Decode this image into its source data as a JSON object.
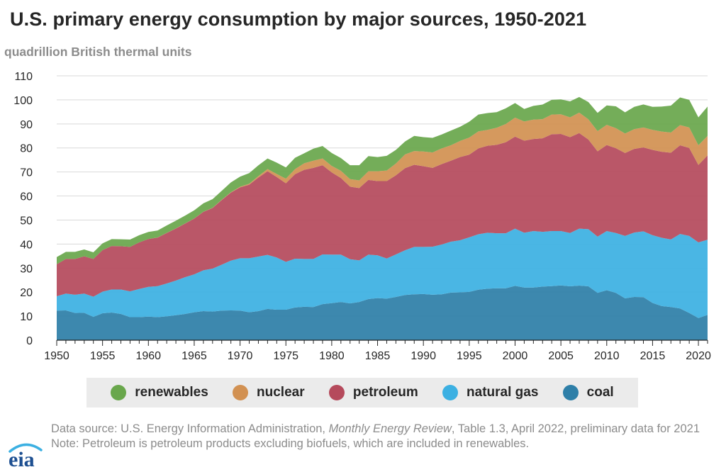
{
  "title": "U.S. primary energy consumption by major sources, 1950-2021",
  "subtitle": "quadrillion British thermal units",
  "footer": {
    "source_prefix": "Data source: U.S. Energy Information Administration, ",
    "source_italic": "Monthly Energy Review",
    "source_suffix": ", Table 1.3, April 2022, preliminary data for 2021",
    "note": "Note: Petroleum is petroleum products excluding biofuels, which are included in renewables."
  },
  "logo": {
    "text": "eia"
  },
  "colors": {
    "coal": "#2e7fa8",
    "natural_gas": "#3cb0e2",
    "petroleum": "#b54a5c",
    "nuclear": "#d29152",
    "renewables": "#69a74c"
  },
  "chart_data": {
    "type": "area",
    "stacked": true,
    "x": [
      1950,
      1951,
      1952,
      1953,
      1954,
      1955,
      1956,
      1957,
      1958,
      1959,
      1960,
      1961,
      1962,
      1963,
      1964,
      1965,
      1966,
      1967,
      1968,
      1969,
      1970,
      1971,
      1972,
      1973,
      1974,
      1975,
      1976,
      1977,
      1978,
      1979,
      1980,
      1981,
      1982,
      1983,
      1984,
      1985,
      1986,
      1987,
      1988,
      1989,
      1990,
      1991,
      1992,
      1993,
      1994,
      1995,
      1996,
      1997,
      1998,
      1999,
      2000,
      2001,
      2002,
      2003,
      2004,
      2005,
      2006,
      2007,
      2008,
      2009,
      2010,
      2011,
      2012,
      2013,
      2014,
      2015,
      2016,
      2017,
      2018,
      2019,
      2020,
      2021
    ],
    "xlim": [
      1950,
      2021
    ],
    "ylim": [
      0,
      110
    ],
    "x_ticks": [
      1950,
      1955,
      1960,
      1965,
      1970,
      1975,
      1980,
      1985,
      1990,
      1995,
      2000,
      2005,
      2010,
      2015,
      2020
    ],
    "y_ticks": [
      0,
      10,
      20,
      30,
      40,
      50,
      60,
      70,
      80,
      90,
      100,
      110
    ],
    "grid": "horizontal",
    "legend_position": "bottom",
    "series": [
      {
        "name": "coal",
        "color_key": "coal",
        "values": [
          12.3,
          12.4,
          11.3,
          11.4,
          9.7,
          11.2,
          11.5,
          10.9,
          9.6,
          9.6,
          9.8,
          9.6,
          9.9,
          10.4,
          10.9,
          11.6,
          12.1,
          11.9,
          12.3,
          12.4,
          12.3,
          11.6,
          12.1,
          13.0,
          12.7,
          12.7,
          13.6,
          13.9,
          13.8,
          15.0,
          15.4,
          15.9,
          15.3,
          15.9,
          17.1,
          17.5,
          17.3,
          18.0,
          18.8,
          19.1,
          19.2,
          18.9,
          19.1,
          19.8,
          19.9,
          20.1,
          21.0,
          21.4,
          21.6,
          21.6,
          22.6,
          21.9,
          21.9,
          22.3,
          22.5,
          22.8,
          22.4,
          22.7,
          22.4,
          19.7,
          20.8,
          19.7,
          17.4,
          18.0,
          17.9,
          15.5,
          14.2,
          13.8,
          13.2,
          11.3,
          9.2,
          10.5
        ]
      },
      {
        "name": "natural gas",
        "color_key": "natural_gas",
        "values": [
          6.0,
          7.0,
          7.6,
          8.0,
          8.4,
          9.0,
          9.6,
          10.2,
          10.7,
          11.7,
          12.4,
          12.9,
          13.7,
          14.4,
          15.3,
          15.8,
          17.0,
          17.9,
          19.1,
          20.7,
          21.8,
          22.5,
          22.7,
          22.5,
          21.7,
          19.9,
          20.3,
          19.9,
          20.0,
          20.7,
          20.2,
          19.7,
          18.4,
          17.3,
          18.5,
          17.8,
          16.7,
          17.7,
          18.6,
          19.7,
          19.6,
          20.0,
          20.7,
          21.2,
          21.7,
          22.7,
          23.1,
          23.3,
          22.9,
          22.9,
          23.8,
          22.8,
          23.5,
          22.8,
          22.9,
          22.6,
          22.2,
          23.7,
          23.8,
          23.4,
          24.6,
          24.9,
          26.0,
          26.8,
          27.4,
          28.2,
          28.4,
          28.1,
          31.0,
          32.1,
          31.5,
          31.3
        ]
      },
      {
        "name": "petroleum",
        "color_key": "petroleum",
        "values": [
          13.3,
          14.4,
          14.9,
          15.5,
          15.7,
          17.3,
          18.1,
          18.0,
          18.5,
          19.4,
          19.9,
          20.2,
          21.0,
          21.7,
          22.3,
          23.2,
          24.3,
          25.2,
          26.9,
          28.3,
          29.5,
          30.6,
          32.9,
          34.8,
          33.5,
          32.7,
          35.2,
          37.1,
          37.9,
          37.1,
          34.2,
          31.9,
          30.2,
          30.1,
          31.1,
          30.9,
          32.2,
          32.9,
          34.2,
          34.2,
          33.6,
          32.8,
          33.5,
          33.7,
          34.6,
          34.4,
          35.7,
          36.2,
          36.8,
          37.9,
          38.3,
          38.3,
          38.3,
          38.9,
          40.3,
          40.4,
          39.9,
          39.8,
          37.3,
          35.5,
          35.8,
          35.3,
          34.5,
          34.8,
          34.9,
          35.5,
          35.8,
          36.1,
          36.9,
          36.6,
          32.2,
          35.1
        ]
      },
      {
        "name": "nuclear",
        "color_key": "nuclear",
        "values": [
          0,
          0,
          0,
          0,
          0,
          0,
          0,
          0.002,
          0.002,
          0.002,
          0.006,
          0.02,
          0.03,
          0.04,
          0.04,
          0.04,
          0.06,
          0.09,
          0.14,
          0.15,
          0.24,
          0.41,
          0.58,
          0.91,
          1.27,
          1.9,
          2.1,
          2.7,
          3.0,
          2.8,
          2.7,
          3.0,
          3.1,
          3.2,
          3.6,
          4.1,
          4.4,
          4.9,
          5.7,
          5.7,
          6.1,
          6.4,
          6.5,
          6.4,
          6.7,
          7.1,
          7.1,
          6.6,
          7.1,
          7.6,
          7.9,
          8.0,
          8.1,
          7.96,
          8.2,
          8.2,
          8.2,
          8.5,
          8.4,
          8.4,
          8.4,
          8.3,
          8.1,
          8.2,
          8.3,
          8.3,
          8.4,
          8.4,
          8.4,
          8.5,
          8.2,
          8.1
        ]
      },
      {
        "name": "renewables",
        "color_key": "renewables",
        "values": [
          2.98,
          2.96,
          2.94,
          2.83,
          2.75,
          2.78,
          2.85,
          2.88,
          3.08,
          2.98,
          2.93,
          2.93,
          3.1,
          3.18,
          3.3,
          3.4,
          3.5,
          3.6,
          3.7,
          4.1,
          4.2,
          4.4,
          4.5,
          4.4,
          4.7,
          4.7,
          4.7,
          4.2,
          5.0,
          5.2,
          5.4,
          5.3,
          5.8,
          6.3,
          6.3,
          5.9,
          6.1,
          5.7,
          5.4,
          6.3,
          6.0,
          6.1,
          5.8,
          6.1,
          5.9,
          6.6,
          7.0,
          7.0,
          6.5,
          6.5,
          6.1,
          5.2,
          5.7,
          6.1,
          6.1,
          6.2,
          6.7,
          6.5,
          7.2,
          7.6,
          8.1,
          9.1,
          8.8,
          9.3,
          9.6,
          9.6,
          10.4,
          11.2,
          11.5,
          11.5,
          11.6,
          12.2
        ]
      }
    ],
    "legend": [
      "renewables",
      "nuclear",
      "petroleum",
      "natural gas",
      "coal"
    ]
  }
}
